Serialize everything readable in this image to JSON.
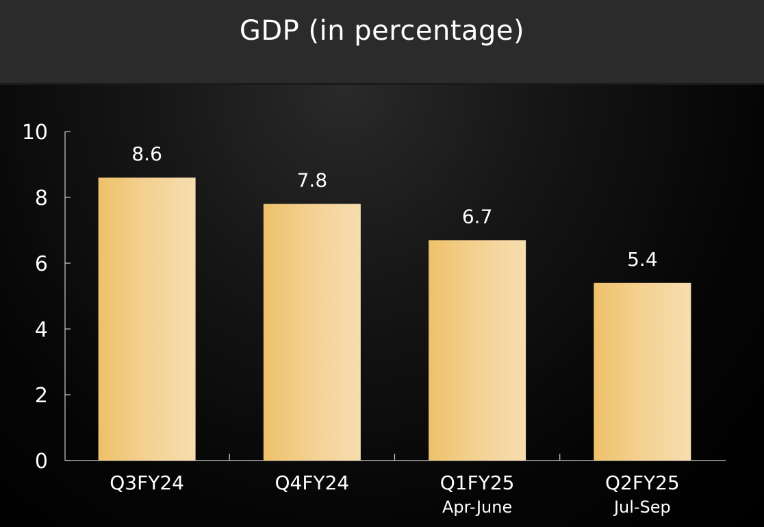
{
  "header": {
    "title": "GDP (in percentage)"
  },
  "colors": {
    "background": "#000000",
    "header_background": "#2b2b2b",
    "bar_light": "#f6dba8",
    "bar_dark": "#eec16a",
    "axis": "#cccccc",
    "text": "#ffffff"
  },
  "chart_data": {
    "type": "bar",
    "title": "GDP (in percentage)",
    "xlabel": "",
    "ylabel": "",
    "ylim": [
      0,
      10
    ],
    "yticks": [
      0,
      2,
      4,
      6,
      8,
      10
    ],
    "categories": [
      "Q3FY24",
      "Q4FY24",
      "Q1FY25",
      "Q2FY25"
    ],
    "category_sublabels": [
      "",
      "",
      "Apr-June",
      "Jul-Sep"
    ],
    "values": [
      8.6,
      7.8,
      6.7,
      5.4
    ],
    "value_labels": [
      "8.6",
      "7.8",
      "6.7",
      "5.4"
    ],
    "grid": false,
    "legend": "none"
  }
}
